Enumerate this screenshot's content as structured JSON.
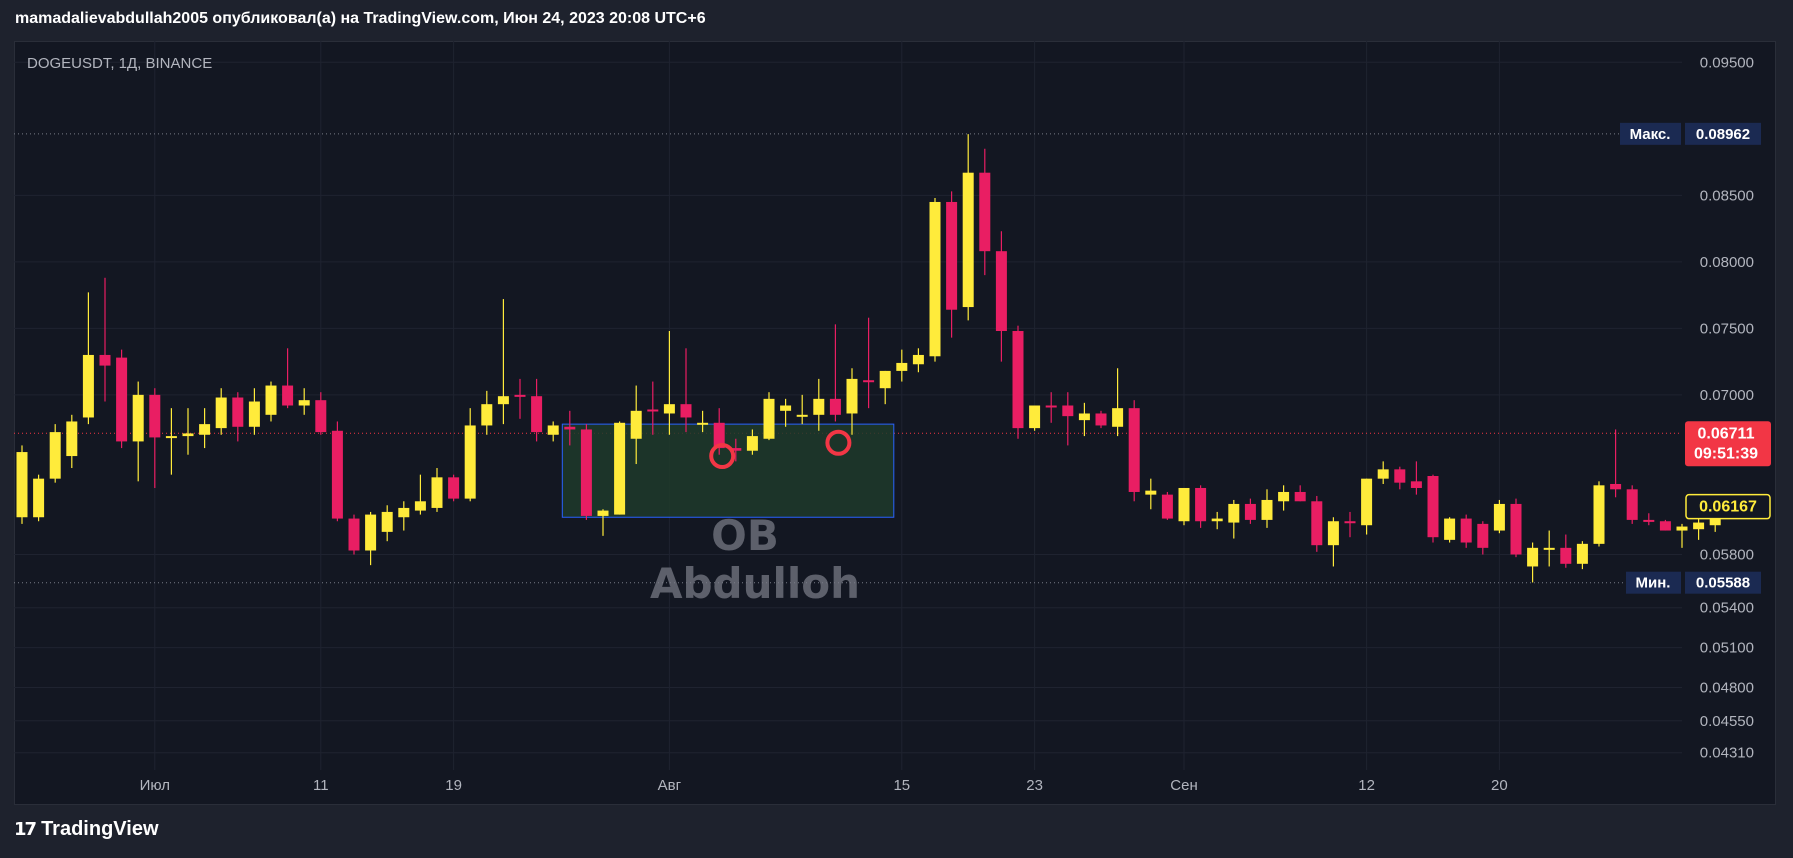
{
  "header": {
    "text": "mamadalievabdullah2005 опубликовал(а) на TradingView.com, Июн 24, 2023 20:08 UTC+6"
  },
  "symbol": "DOGEUSDT, 1Д, BINANCE",
  "watermark": {
    "line1": "OB",
    "line2": "Abdulloh"
  },
  "footer": {
    "brand": "TradingView",
    "logo_icon": "tradingview-logo-icon"
  },
  "colors": {
    "background": "#131722",
    "grid": "#1f2330",
    "bull": "#ffeb3b",
    "bear": "#e91e63",
    "ob_fill": "#1f3a2a",
    "ob_border": "#2962ff",
    "circle": "#f23645",
    "max_badge": "#1b2a52",
    "current_badge": "#f23645",
    "last_badge_border": "#ffeb3b"
  },
  "chart_data": {
    "type": "candlestick",
    "ylim": [
      0.0418,
      0.0966
    ],
    "price_axis_ticks": [
      "0.09500",
      "0.08500",
      "0.08000",
      "0.07500",
      "0.07000",
      "0.05800",
      "0.05400",
      "0.05100",
      "0.04800",
      "0.04550",
      "0.04310"
    ],
    "price_axis_tick_values": [
      0.095,
      0.085,
      0.08,
      0.075,
      0.07,
      0.058,
      0.054,
      0.051,
      0.048,
      0.0455,
      0.0431
    ],
    "time_axis": [
      {
        "label": "Июл",
        "index": 8
      },
      {
        "label": "11",
        "index": 18
      },
      {
        "label": "19",
        "index": 26
      },
      {
        "label": "Авг",
        "index": 39
      },
      {
        "label": "15",
        "index": 53
      },
      {
        "label": "23",
        "index": 61
      },
      {
        "label": "Сен",
        "index": 70
      },
      {
        "label": "12",
        "index": 81
      },
      {
        "label": "20",
        "index": 89
      }
    ],
    "max": {
      "label": "Макс.",
      "value": "0.08962",
      "price": 0.08962
    },
    "min": {
      "label": "Мин.",
      "value": "0.05588",
      "price": 0.05588
    },
    "current": {
      "value": "0.06711",
      "timer": "09:51:39",
      "price": 0.06711
    },
    "last": {
      "value": "0.06167",
      "price": 0.06167
    },
    "order_block": {
      "start_index": 33,
      "end_index": 53,
      "top": 0.0678,
      "bottom": 0.0608
    },
    "marked_points": [
      {
        "index": 42,
        "price": 0.0654
      },
      {
        "index": 49,
        "price": 0.0664
      }
    ],
    "candles": [
      {
        "o": 0.0608,
        "h": 0.0662,
        "l": 0.0603,
        "c": 0.0657
      },
      {
        "o": 0.0608,
        "h": 0.064,
        "l": 0.0605,
        "c": 0.0637
      },
      {
        "o": 0.0637,
        "h": 0.0678,
        "l": 0.0634,
        "c": 0.0672
      },
      {
        "o": 0.0654,
        "h": 0.0685,
        "l": 0.0645,
        "c": 0.068
      },
      {
        "o": 0.0683,
        "h": 0.0777,
        "l": 0.0678,
        "c": 0.073
      },
      {
        "o": 0.073,
        "h": 0.0788,
        "l": 0.0695,
        "c": 0.0722
      },
      {
        "o": 0.0728,
        "h": 0.0734,
        "l": 0.066,
        "c": 0.0665
      },
      {
        "o": 0.0665,
        "h": 0.071,
        "l": 0.0635,
        "c": 0.07
      },
      {
        "o": 0.07,
        "h": 0.0705,
        "l": 0.063,
        "c": 0.0668
      },
      {
        "o": 0.0668,
        "h": 0.069,
        "l": 0.064,
        "c": 0.0669
      },
      {
        "o": 0.0669,
        "h": 0.069,
        "l": 0.0655,
        "c": 0.0671
      },
      {
        "o": 0.067,
        "h": 0.069,
        "l": 0.066,
        "c": 0.0678
      },
      {
        "o": 0.0675,
        "h": 0.0705,
        "l": 0.067,
        "c": 0.0698
      },
      {
        "o": 0.0698,
        "h": 0.0702,
        "l": 0.0665,
        "c": 0.0676
      },
      {
        "o": 0.0676,
        "h": 0.0705,
        "l": 0.067,
        "c": 0.0695
      },
      {
        "o": 0.0685,
        "h": 0.071,
        "l": 0.068,
        "c": 0.0707
      },
      {
        "o": 0.0707,
        "h": 0.0735,
        "l": 0.069,
        "c": 0.0692
      },
      {
        "o": 0.0692,
        "h": 0.0705,
        "l": 0.0685,
        "c": 0.0696
      },
      {
        "o": 0.0696,
        "h": 0.0702,
        "l": 0.067,
        "c": 0.0672
      },
      {
        "o": 0.0673,
        "h": 0.068,
        "l": 0.0605,
        "c": 0.0607
      },
      {
        "o": 0.0607,
        "h": 0.061,
        "l": 0.058,
        "c": 0.0583
      },
      {
        "o": 0.0583,
        "h": 0.0612,
        "l": 0.0572,
        "c": 0.061
      },
      {
        "o": 0.0597,
        "h": 0.0617,
        "l": 0.059,
        "c": 0.0612
      },
      {
        "o": 0.0608,
        "h": 0.062,
        "l": 0.0598,
        "c": 0.0615
      },
      {
        "o": 0.0613,
        "h": 0.064,
        "l": 0.061,
        "c": 0.062
      },
      {
        "o": 0.0615,
        "h": 0.0645,
        "l": 0.0612,
        "c": 0.0638
      },
      {
        "o": 0.0638,
        "h": 0.064,
        "l": 0.062,
        "c": 0.0622
      },
      {
        "o": 0.0622,
        "h": 0.069,
        "l": 0.062,
        "c": 0.0677
      },
      {
        "o": 0.0677,
        "h": 0.0703,
        "l": 0.067,
        "c": 0.0693
      },
      {
        "o": 0.0693,
        "h": 0.0772,
        "l": 0.0678,
        "c": 0.0699
      },
      {
        "o": 0.07,
        "h": 0.0712,
        "l": 0.0682,
        "c": 0.0699
      },
      {
        "o": 0.0699,
        "h": 0.0712,
        "l": 0.0665,
        "c": 0.0672
      },
      {
        "o": 0.067,
        "h": 0.068,
        "l": 0.0665,
        "c": 0.0677
      },
      {
        "o": 0.0676,
        "h": 0.0688,
        "l": 0.0662,
        "c": 0.0674
      },
      {
        "o": 0.0674,
        "h": 0.0678,
        "l": 0.0606,
        "c": 0.0609
      },
      {
        "o": 0.0609,
        "h": 0.0614,
        "l": 0.0594,
        "c": 0.0613
      },
      {
        "o": 0.061,
        "h": 0.068,
        "l": 0.061,
        "c": 0.0679
      },
      {
        "o": 0.0667,
        "h": 0.0707,
        "l": 0.0648,
        "c": 0.0688
      },
      {
        "o": 0.0689,
        "h": 0.071,
        "l": 0.067,
        "c": 0.0688
      },
      {
        "o": 0.0686,
        "h": 0.0748,
        "l": 0.067,
        "c": 0.0693
      },
      {
        "o": 0.0693,
        "h": 0.0735,
        "l": 0.0672,
        "c": 0.0683
      },
      {
        "o": 0.0679,
        "h": 0.0688,
        "l": 0.0672,
        "c": 0.0679
      },
      {
        "o": 0.0679,
        "h": 0.069,
        "l": 0.0655,
        "c": 0.066
      },
      {
        "o": 0.066,
        "h": 0.0667,
        "l": 0.065,
        "c": 0.0658
      },
      {
        "o": 0.0658,
        "h": 0.0674,
        "l": 0.0655,
        "c": 0.0669
      },
      {
        "o": 0.0667,
        "h": 0.0702,
        "l": 0.0666,
        "c": 0.0697
      },
      {
        "o": 0.0688,
        "h": 0.0697,
        "l": 0.0676,
        "c": 0.0692
      },
      {
        "o": 0.0684,
        "h": 0.07,
        "l": 0.0678,
        "c": 0.0685
      },
      {
        "o": 0.0685,
        "h": 0.0712,
        "l": 0.0673,
        "c": 0.0697
      },
      {
        "o": 0.0697,
        "h": 0.0753,
        "l": 0.068,
        "c": 0.0685
      },
      {
        "o": 0.0686,
        "h": 0.072,
        "l": 0.067,
        "c": 0.0712
      },
      {
        "o": 0.0711,
        "h": 0.0758,
        "l": 0.069,
        "c": 0.071
      },
      {
        "o": 0.0705,
        "h": 0.0718,
        "l": 0.0693,
        "c": 0.0718
      },
      {
        "o": 0.0718,
        "h": 0.0734,
        "l": 0.071,
        "c": 0.0724
      },
      {
        "o": 0.0723,
        "h": 0.0735,
        "l": 0.0717,
        "c": 0.073
      },
      {
        "o": 0.0729,
        "h": 0.0848,
        "l": 0.0725,
        "c": 0.0845
      },
      {
        "o": 0.0845,
        "h": 0.0853,
        "l": 0.0743,
        "c": 0.0764
      },
      {
        "o": 0.0766,
        "h": 0.0896,
        "l": 0.0756,
        "c": 0.0867
      },
      {
        "o": 0.0867,
        "h": 0.0885,
        "l": 0.079,
        "c": 0.0808
      },
      {
        "o": 0.0808,
        "h": 0.0823,
        "l": 0.0725,
        "c": 0.0748
      },
      {
        "o": 0.0748,
        "h": 0.0752,
        "l": 0.0667,
        "c": 0.0675
      },
      {
        "o": 0.0675,
        "h": 0.069,
        "l": 0.0673,
        "c": 0.0692
      },
      {
        "o": 0.0692,
        "h": 0.0702,
        "l": 0.0679,
        "c": 0.0691
      },
      {
        "o": 0.0692,
        "h": 0.0702,
        "l": 0.0662,
        "c": 0.0684
      },
      {
        "o": 0.0681,
        "h": 0.0694,
        "l": 0.0669,
        "c": 0.0686
      },
      {
        "o": 0.0686,
        "h": 0.0688,
        "l": 0.0675,
        "c": 0.0677
      },
      {
        "o": 0.0676,
        "h": 0.072,
        "l": 0.0669,
        "c": 0.069
      },
      {
        "o": 0.069,
        "h": 0.0696,
        "l": 0.062,
        "c": 0.0627
      },
      {
        "o": 0.0625,
        "h": 0.0637,
        "l": 0.0614,
        "c": 0.0628
      },
      {
        "o": 0.0625,
        "h": 0.0627,
        "l": 0.0606,
        "c": 0.0607
      },
      {
        "o": 0.0605,
        "h": 0.063,
        "l": 0.0602,
        "c": 0.063
      },
      {
        "o": 0.063,
        "h": 0.0632,
        "l": 0.06,
        "c": 0.0605
      },
      {
        "o": 0.0605,
        "h": 0.0612,
        "l": 0.0599,
        "c": 0.0607
      },
      {
        "o": 0.0604,
        "h": 0.0621,
        "l": 0.0592,
        "c": 0.0618
      },
      {
        "o": 0.0618,
        "h": 0.0622,
        "l": 0.0603,
        "c": 0.0606
      },
      {
        "o": 0.0606,
        "h": 0.0629,
        "l": 0.06,
        "c": 0.0621
      },
      {
        "o": 0.062,
        "h": 0.0632,
        "l": 0.0613,
        "c": 0.0627
      },
      {
        "o": 0.0627,
        "h": 0.0632,
        "l": 0.062,
        "c": 0.062
      },
      {
        "o": 0.062,
        "h": 0.0624,
        "l": 0.0582,
        "c": 0.0587
      },
      {
        "o": 0.0587,
        "h": 0.0608,
        "l": 0.0571,
        "c": 0.0605
      },
      {
        "o": 0.0605,
        "h": 0.0612,
        "l": 0.0593,
        "c": 0.0604
      },
      {
        "o": 0.0602,
        "h": 0.0637,
        "l": 0.0595,
        "c": 0.0637
      },
      {
        "o": 0.0637,
        "h": 0.065,
        "l": 0.0633,
        "c": 0.0644
      },
      {
        "o": 0.0644,
        "h": 0.0646,
        "l": 0.0629,
        "c": 0.0634
      },
      {
        "o": 0.0635,
        "h": 0.065,
        "l": 0.0625,
        "c": 0.063
      },
      {
        "o": 0.0639,
        "h": 0.064,
        "l": 0.0589,
        "c": 0.0593
      },
      {
        "o": 0.0591,
        "h": 0.0608,
        "l": 0.0589,
        "c": 0.0607
      },
      {
        "o": 0.0607,
        "h": 0.061,
        "l": 0.0585,
        "c": 0.0589
      },
      {
        "o": 0.0603,
        "h": 0.0605,
        "l": 0.058,
        "c": 0.0585
      },
      {
        "o": 0.0598,
        "h": 0.0621,
        "l": 0.0596,
        "c": 0.0618
      },
      {
        "o": 0.0618,
        "h": 0.0622,
        "l": 0.0578,
        "c": 0.058
      },
      {
        "o": 0.0571,
        "h": 0.0589,
        "l": 0.0559,
        "c": 0.0585
      },
      {
        "o": 0.0584,
        "h": 0.0598,
        "l": 0.0571,
        "c": 0.0585
      },
      {
        "o": 0.0585,
        "h": 0.0595,
        "l": 0.057,
        "c": 0.0573
      },
      {
        "o": 0.0573,
        "h": 0.059,
        "l": 0.0569,
        "c": 0.0588
      },
      {
        "o": 0.0588,
        "h": 0.0635,
        "l": 0.0586,
        "c": 0.0632
      },
      {
        "o": 0.0633,
        "h": 0.0674,
        "l": 0.0623,
        "c": 0.0629
      },
      {
        "o": 0.0629,
        "h": 0.0632,
        "l": 0.0603,
        "c": 0.0606
      },
      {
        "o": 0.0606,
        "h": 0.0611,
        "l": 0.0602,
        "c": 0.0605
      },
      {
        "o": 0.0605,
        "h": 0.0606,
        "l": 0.0598,
        "c": 0.0598
      },
      {
        "o": 0.0598,
        "h": 0.0603,
        "l": 0.0585,
        "c": 0.0601
      },
      {
        "o": 0.0599,
        "h": 0.0611,
        "l": 0.0591,
        "c": 0.0604
      },
      {
        "o": 0.0602,
        "h": 0.0614,
        "l": 0.0597,
        "c": 0.061
      }
    ]
  }
}
